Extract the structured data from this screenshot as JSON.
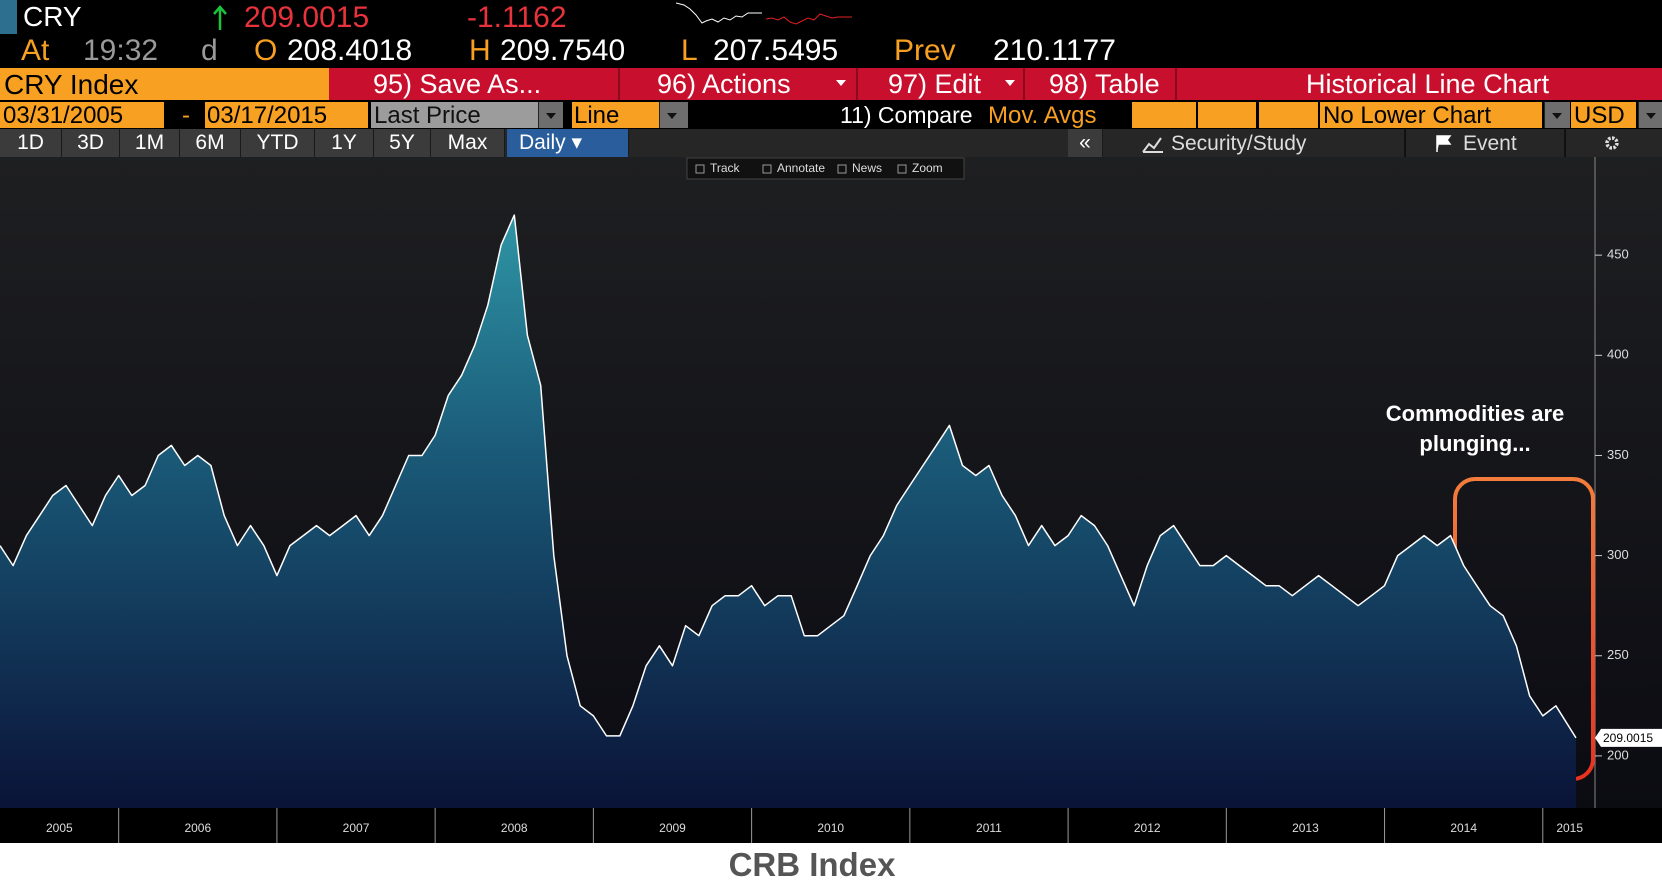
{
  "header": {
    "ticker": "CRY",
    "last": "209.0015",
    "change": "-1.1162",
    "at": "At",
    "time": "19:32",
    "flag": "d",
    "open_label": "O",
    "open": "208.4018",
    "high_label": "H",
    "high": "209.7540",
    "low_label": "L",
    "low": "207.5495",
    "prev_label": "Prev",
    "prev": "210.1177"
  },
  "menu": {
    "security": "CRY Index",
    "items": [
      "95) Save As...",
      "96) Actions",
      "97) Edit",
      "98) Table"
    ],
    "view": "Historical Line Chart"
  },
  "settings": {
    "start": "03/31/2005",
    "dash": "-",
    "end": "03/17/2015",
    "field": "Last Price",
    "style": "Line",
    "compare": "11) Compare",
    "mov_avgs": "Mov. Avgs",
    "lower": "No Lower Chart",
    "currency": "USD"
  },
  "tabs": {
    "periods": [
      "1D",
      "3D",
      "1M",
      "6M",
      "YTD",
      "1Y",
      "5Y",
      "Max"
    ],
    "frequency": "Daily",
    "right": [
      "«",
      "Security/Study",
      "Event"
    ]
  },
  "toolbar": [
    "Track",
    "Annotate",
    "News",
    "Zoom"
  ],
  "chart_data": {
    "type": "area",
    "x": [
      2005.25,
      2005.333,
      2005.417,
      2005.5,
      2005.583,
      2005.667,
      2005.75,
      2005.833,
      2005.917,
      2006,
      2006.083,
      2006.167,
      2006.25,
      2006.333,
      2006.417,
      2006.5,
      2006.583,
      2006.667,
      2006.75,
      2006.833,
      2006.917,
      2007,
      2007.083,
      2007.167,
      2007.25,
      2007.333,
      2007.417,
      2007.5,
      2007.583,
      2007.667,
      2007.75,
      2007.833,
      2007.917,
      2008,
      2008.083,
      2008.167,
      2008.25,
      2008.333,
      2008.417,
      2008.5,
      2008.583,
      2008.667,
      2008.75,
      2008.833,
      2008.917,
      2009,
      2009.083,
      2009.167,
      2009.25,
      2009.333,
      2009.417,
      2009.5,
      2009.583,
      2009.667,
      2009.75,
      2009.833,
      2009.917,
      2010,
      2010.083,
      2010.167,
      2010.25,
      2010.333,
      2010.417,
      2010.5,
      2010.583,
      2010.667,
      2010.75,
      2010.833,
      2010.917,
      2011,
      2011.083,
      2011.167,
      2011.25,
      2011.333,
      2011.417,
      2011.5,
      2011.583,
      2011.667,
      2011.75,
      2011.833,
      2011.917,
      2012,
      2012.083,
      2012.167,
      2012.25,
      2012.333,
      2012.417,
      2012.5,
      2012.583,
      2012.667,
      2012.75,
      2012.833,
      2012.917,
      2013,
      2013.083,
      2013.167,
      2013.25,
      2013.333,
      2013.417,
      2013.5,
      2013.583,
      2013.667,
      2013.75,
      2013.833,
      2013.917,
      2014,
      2014.083,
      2014.167,
      2014.25,
      2014.333,
      2014.417,
      2014.5,
      2014.583,
      2014.667,
      2014.75,
      2014.833,
      2014.917,
      2015,
      2015.083,
      2015.21
    ],
    "series": [
      {
        "color": "#ffffff",
        "values": [
          305,
          295,
          310,
          320,
          330,
          335,
          325,
          315,
          330,
          340,
          330,
          335,
          350,
          355,
          345,
          350,
          345,
          320,
          305,
          315,
          305,
          290,
          305,
          310,
          315,
          310,
          315,
          320,
          310,
          320,
          335,
          350,
          350,
          360,
          380,
          390,
          405,
          425,
          455,
          470,
          410,
          385,
          300,
          250,
          225,
          220,
          210,
          210,
          225,
          245,
          255,
          245,
          265,
          260,
          275,
          280,
          280,
          285,
          275,
          280,
          280,
          260,
          260,
          265,
          270,
          285,
          300,
          310,
          325,
          335,
          345,
          355,
          365,
          345,
          340,
          345,
          330,
          320,
          305,
          315,
          305,
          310,
          320,
          315,
          305,
          290,
          275,
          295,
          310,
          315,
          305,
          295,
          295,
          300,
          295,
          290,
          285,
          285,
          280,
          285,
          290,
          285,
          280,
          275,
          280,
          285,
          300,
          305,
          310,
          305,
          310,
          295,
          285,
          275,
          270,
          255,
          230,
          220,
          225,
          209.0015
        ]
      }
    ],
    "xlim": [
      2005.25,
      2015.33
    ],
    "xticks": [
      {
        "value": 2005.625,
        "label": "2005"
      },
      {
        "value": 2006.5,
        "label": "2006"
      },
      {
        "value": 2007.5,
        "label": "2007"
      },
      {
        "value": 2008.5,
        "label": "2008"
      },
      {
        "value": 2009.5,
        "label": "2009"
      },
      {
        "value": 2010.5,
        "label": "2010"
      },
      {
        "value": 2011.5,
        "label": "2011"
      },
      {
        "value": 2012.5,
        "label": "2012"
      },
      {
        "value": 2013.5,
        "label": "2013"
      },
      {
        "value": 2014.5,
        "label": "2014"
      },
      {
        "value": 2015.17,
        "label": "2015"
      }
    ],
    "ylim": [
      174,
      499
    ],
    "yticks": [
      200,
      250,
      300,
      350,
      400,
      450
    ],
    "annotation": [
      "Commodities are",
      "plunging..."
    ]
  },
  "caption": "CRB Index"
}
